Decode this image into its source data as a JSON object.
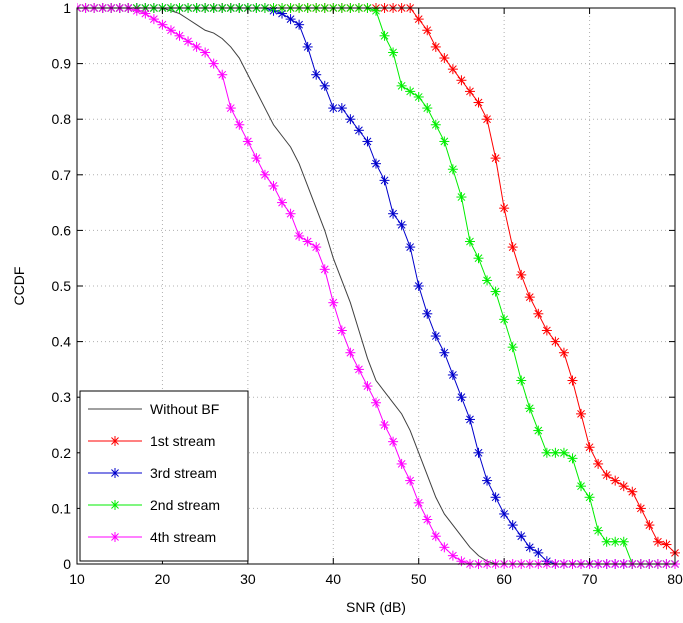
{
  "chart_data": {
    "type": "line",
    "xlabel": "SNR (dB)",
    "ylabel": "CCDF",
    "xlim": [
      10,
      80
    ],
    "ylim": [
      0,
      1
    ],
    "xticks": [
      10,
      20,
      30,
      40,
      50,
      60,
      70,
      80
    ],
    "yticks": [
      0,
      0.1,
      0.2,
      0.3,
      0.4,
      0.5,
      0.6,
      0.7,
      0.8,
      0.9,
      1
    ],
    "grid": true,
    "legend_position": "bottom-left",
    "series": [
      {
        "name": "Without BF",
        "color": "#404040",
        "marker": "none",
        "points": [
          [
            10,
            1
          ],
          [
            20,
            1
          ],
          [
            21,
            0.995
          ],
          [
            22,
            0.99
          ],
          [
            23,
            0.98
          ],
          [
            24,
            0.97
          ],
          [
            25,
            0.96
          ],
          [
            26,
            0.955
          ],
          [
            27,
            0.945
          ],
          [
            28,
            0.93
          ],
          [
            29,
            0.91
          ],
          [
            30,
            0.88
          ],
          [
            31,
            0.85
          ],
          [
            32,
            0.82
          ],
          [
            33,
            0.79
          ],
          [
            34,
            0.77
          ],
          [
            35,
            0.75
          ],
          [
            36,
            0.72
          ],
          [
            37,
            0.68
          ],
          [
            38,
            0.64
          ],
          [
            39,
            0.6
          ],
          [
            40,
            0.55
          ],
          [
            41,
            0.51
          ],
          [
            42,
            0.47
          ],
          [
            43,
            0.42
          ],
          [
            44,
            0.37
          ],
          [
            45,
            0.33
          ],
          [
            46,
            0.31
          ],
          [
            47,
            0.29
          ],
          [
            48,
            0.27
          ],
          [
            49,
            0.24
          ],
          [
            50,
            0.2
          ],
          [
            51,
            0.16
          ],
          [
            52,
            0.12
          ],
          [
            53,
            0.09
          ],
          [
            54,
            0.07
          ],
          [
            55,
            0.05
          ],
          [
            56,
            0.03
          ],
          [
            57,
            0.015
          ],
          [
            58,
            0.005
          ],
          [
            59,
            0
          ],
          [
            80,
            0
          ]
        ]
      },
      {
        "name": "1st stream",
        "color": "#ff0000",
        "marker": "asterisk",
        "points": [
          [
            10,
            1
          ],
          [
            46,
            1
          ],
          [
            47,
            1
          ],
          [
            48,
            1
          ],
          [
            49,
            1
          ],
          [
            50,
            0.98
          ],
          [
            51,
            0.96
          ],
          [
            52,
            0.93
          ],
          [
            53,
            0.91
          ],
          [
            54,
            0.89
          ],
          [
            55,
            0.87
          ],
          [
            56,
            0.85
          ],
          [
            57,
            0.83
          ],
          [
            58,
            0.8
          ],
          [
            59,
            0.73
          ],
          [
            60,
            0.64
          ],
          [
            61,
            0.57
          ],
          [
            62,
            0.52
          ],
          [
            63,
            0.48
          ],
          [
            64,
            0.45
          ],
          [
            65,
            0.42
          ],
          [
            66,
            0.4
          ],
          [
            67,
            0.38
          ],
          [
            68,
            0.33
          ],
          [
            69,
            0.27
          ],
          [
            70,
            0.21
          ],
          [
            71,
            0.18
          ],
          [
            72,
            0.16
          ],
          [
            73,
            0.15
          ],
          [
            74,
            0.14
          ],
          [
            75,
            0.13
          ],
          [
            76,
            0.1
          ],
          [
            77,
            0.07
          ],
          [
            78,
            0.04
          ],
          [
            79,
            0.035
          ],
          [
            80,
            0.02
          ]
        ]
      },
      {
        "name": "3rd stream",
        "color": "#0000cc",
        "marker": "asterisk",
        "points": [
          [
            10,
            1
          ],
          [
            32,
            1
          ],
          [
            33,
            0.995
          ],
          [
            34,
            0.99
          ],
          [
            35,
            0.98
          ],
          [
            36,
            0.97
          ],
          [
            37,
            0.93
          ],
          [
            38,
            0.88
          ],
          [
            39,
            0.86
          ],
          [
            40,
            0.82
          ],
          [
            41,
            0.82
          ],
          [
            42,
            0.8
          ],
          [
            43,
            0.78
          ],
          [
            44,
            0.76
          ],
          [
            45,
            0.72
          ],
          [
            46,
            0.69
          ],
          [
            47,
            0.63
          ],
          [
            48,
            0.61
          ],
          [
            49,
            0.57
          ],
          [
            50,
            0.5
          ],
          [
            51,
            0.45
          ],
          [
            52,
            0.41
          ],
          [
            53,
            0.38
          ],
          [
            54,
            0.34
          ],
          [
            55,
            0.3
          ],
          [
            56,
            0.26
          ],
          [
            57,
            0.2
          ],
          [
            58,
            0.15
          ],
          [
            59,
            0.12
          ],
          [
            60,
            0.09
          ],
          [
            61,
            0.07
          ],
          [
            62,
            0.05
          ],
          [
            63,
            0.03
          ],
          [
            64,
            0.02
          ],
          [
            65,
            0.005
          ],
          [
            66,
            0
          ],
          [
            80,
            0
          ]
        ]
      },
      {
        "name": "2nd stream",
        "color": "#00ee00",
        "marker": "asterisk",
        "points": [
          [
            10,
            1
          ],
          [
            44,
            1
          ],
          [
            45,
            0.995
          ],
          [
            46,
            0.95
          ],
          [
            47,
            0.92
          ],
          [
            48,
            0.86
          ],
          [
            49,
            0.85
          ],
          [
            50,
            0.84
          ],
          [
            51,
            0.82
          ],
          [
            52,
            0.79
          ],
          [
            53,
            0.76
          ],
          [
            54,
            0.71
          ],
          [
            55,
            0.66
          ],
          [
            56,
            0.58
          ],
          [
            57,
            0.55
          ],
          [
            58,
            0.51
          ],
          [
            59,
            0.49
          ],
          [
            60,
            0.44
          ],
          [
            61,
            0.39
          ],
          [
            62,
            0.33
          ],
          [
            63,
            0.28
          ],
          [
            64,
            0.24
          ],
          [
            65,
            0.2
          ],
          [
            66,
            0.2
          ],
          [
            67,
            0.2
          ],
          [
            68,
            0.19
          ],
          [
            69,
            0.14
          ],
          [
            70,
            0.12
          ],
          [
            71,
            0.06
          ],
          [
            72,
            0.04
          ],
          [
            73,
            0.04
          ],
          [
            74,
            0.04
          ],
          [
            75,
            0
          ],
          [
            80,
            0
          ]
        ]
      },
      {
        "name": "4th stream",
        "color": "#ff00ff",
        "marker": "asterisk",
        "points": [
          [
            10,
            1
          ],
          [
            16,
            1
          ],
          [
            17,
            0.995
          ],
          [
            18,
            0.99
          ],
          [
            19,
            0.98
          ],
          [
            20,
            0.97
          ],
          [
            21,
            0.96
          ],
          [
            22,
            0.95
          ],
          [
            23,
            0.94
          ],
          [
            24,
            0.93
          ],
          [
            25,
            0.92
          ],
          [
            26,
            0.9
          ],
          [
            27,
            0.88
          ],
          [
            28,
            0.82
          ],
          [
            29,
            0.79
          ],
          [
            30,
            0.76
          ],
          [
            31,
            0.73
          ],
          [
            32,
            0.7
          ],
          [
            33,
            0.68
          ],
          [
            34,
            0.65
          ],
          [
            35,
            0.63
          ],
          [
            36,
            0.59
          ],
          [
            37,
            0.58
          ],
          [
            38,
            0.57
          ],
          [
            39,
            0.53
          ],
          [
            40,
            0.47
          ],
          [
            41,
            0.42
          ],
          [
            42,
            0.38
          ],
          [
            43,
            0.35
          ],
          [
            44,
            0.32
          ],
          [
            45,
            0.29
          ],
          [
            46,
            0.25
          ],
          [
            47,
            0.22
          ],
          [
            48,
            0.18
          ],
          [
            49,
            0.15
          ],
          [
            50,
            0.11
          ],
          [
            51,
            0.08
          ],
          [
            52,
            0.05
          ],
          [
            53,
            0.03
          ],
          [
            54,
            0.015
          ],
          [
            55,
            0.005
          ],
          [
            56,
            0
          ],
          [
            80,
            0
          ]
        ]
      }
    ]
  }
}
